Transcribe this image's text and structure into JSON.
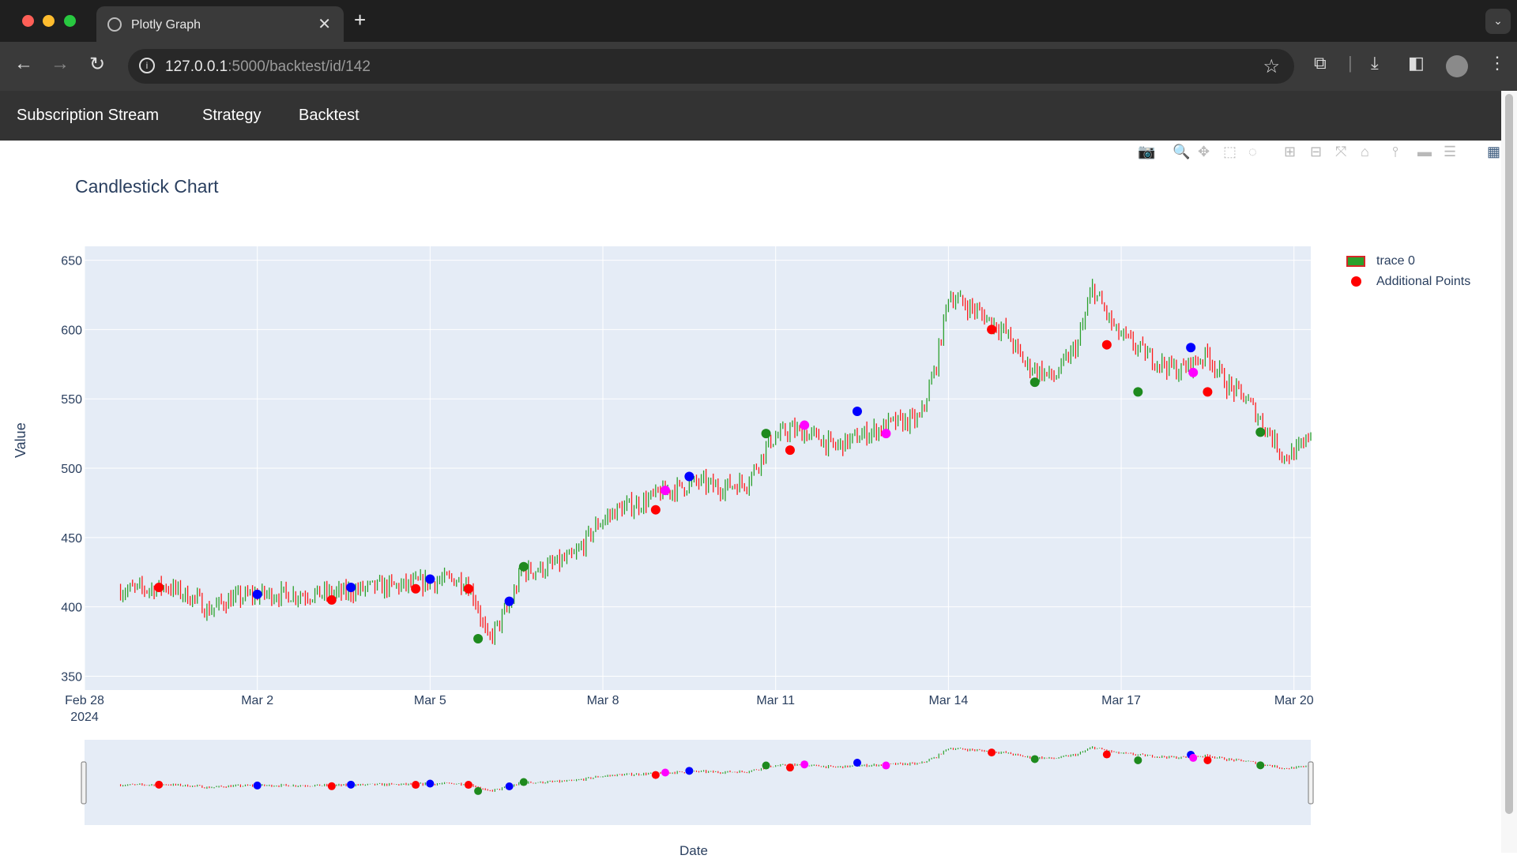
{
  "browser": {
    "tab_title": "Plotly Graph",
    "url_host": "127.0.0.1",
    "url_path": ":5000/backtest/id/142"
  },
  "app_nav": {
    "items": [
      "Subscription Stream",
      "Strategy",
      "Backtest"
    ]
  },
  "colors": {
    "increasing": "#2ca02c",
    "decreasing": "#ff1a1a",
    "plot_bg": "#e5ecf6",
    "blue_marker": "#0000ff",
    "green_marker": "#1e8a1e",
    "red_marker": "#ff0000",
    "magenta_marker": "#ff00ff"
  },
  "chart_data": {
    "type": "candlestick",
    "title": "Candlestick Chart",
    "ylabel": "Value",
    "xlabel": "Date",
    "ylim": [
      340,
      660
    ],
    "xlim": [
      "2024-02-28",
      "2024-03-20T07:00"
    ],
    "x_ticks": [
      {
        "date": "2024-02-28",
        "label": "Feb 28",
        "sub": "2024"
      },
      {
        "date": "2024-03-02",
        "label": "Mar 2",
        "sub": ""
      },
      {
        "date": "2024-03-05",
        "label": "Mar 5",
        "sub": ""
      },
      {
        "date": "2024-03-08",
        "label": "Mar 8",
        "sub": ""
      },
      {
        "date": "2024-03-11",
        "label": "Mar 11",
        "sub": ""
      },
      {
        "date": "2024-03-14",
        "label": "Mar 14",
        "sub": ""
      },
      {
        "date": "2024-03-17",
        "label": "Mar 17",
        "sub": ""
      },
      {
        "date": "2024-03-20",
        "label": "Mar 20",
        "sub": ""
      }
    ],
    "y_ticks": [
      350,
      400,
      450,
      500,
      550,
      600,
      650
    ],
    "grid": true,
    "legend_position": "top-right",
    "legend": [
      "trace 0",
      "Additional Points"
    ],
    "rangeslider": true,
    "price_path": [
      [
        "2024-02-28T15:00",
        412
      ],
      [
        "2024-02-29T03:00",
        413
      ],
      [
        "2024-02-29T10:00",
        415
      ],
      [
        "2024-03-01T00:00",
        404
      ],
      [
        "2024-03-01T03:00",
        397
      ],
      [
        "2024-03-01T12:00",
        405
      ],
      [
        "2024-03-02T00:00",
        409
      ],
      [
        "2024-03-02T12:00",
        409
      ],
      [
        "2024-03-03T00:00",
        409
      ],
      [
        "2024-03-03T12:00",
        410
      ],
      [
        "2024-03-04T00:00",
        414
      ],
      [
        "2024-03-04T12:00",
        415
      ],
      [
        "2024-03-05T00:00",
        418
      ],
      [
        "2024-03-05T10:00",
        420
      ],
      [
        "2024-03-05T15:00",
        418
      ],
      [
        "2024-03-05T19:00",
        405
      ],
      [
        "2024-03-06T00:00",
        375
      ],
      [
        "2024-03-06T09:00",
        400
      ],
      [
        "2024-03-06T14:00",
        425
      ],
      [
        "2024-03-07T00:00",
        428
      ],
      [
        "2024-03-07T12:00",
        436
      ],
      [
        "2024-03-07T22:00",
        460
      ],
      [
        "2024-03-08T06:00",
        470
      ],
      [
        "2024-03-08T16:00",
        475
      ],
      [
        "2024-03-09T00:00",
        482
      ],
      [
        "2024-03-09T16:00",
        490
      ],
      [
        "2024-03-10T00:00",
        486
      ],
      [
        "2024-03-10T12:00",
        490
      ],
      [
        "2024-03-10T22:00",
        520
      ],
      [
        "2024-03-11T06:00",
        528
      ],
      [
        "2024-03-11T18:00",
        522
      ],
      [
        "2024-03-12T00:00",
        515
      ],
      [
        "2024-03-12T14:00",
        525
      ],
      [
        "2024-03-13T00:00",
        532
      ],
      [
        "2024-03-13T12:00",
        535
      ],
      [
        "2024-03-13T19:00",
        575
      ],
      [
        "2024-03-14T00:00",
        625
      ],
      [
        "2024-03-14T12:00",
        613
      ],
      [
        "2024-03-15T00:00",
        598
      ],
      [
        "2024-03-15T08:00",
        575
      ],
      [
        "2024-03-15T20:00",
        565
      ],
      [
        "2024-03-16T06:00",
        590
      ],
      [
        "2024-03-16T12:00",
        630
      ],
      [
        "2024-03-16T22:00",
        598
      ],
      [
        "2024-03-17T12:00",
        580
      ],
      [
        "2024-03-18T00:00",
        570
      ],
      [
        "2024-03-18T12:00",
        582
      ],
      [
        "2024-03-18T20:00",
        560
      ],
      [
        "2024-03-19T04:00",
        550
      ],
      [
        "2024-03-19T12:00",
        530
      ],
      [
        "2024-03-19T20:00",
        508
      ],
      [
        "2024-03-20T04:00",
        515
      ],
      [
        "2024-03-20T07:00",
        528
      ]
    ],
    "additional_points": [
      {
        "x": "2024-02-29T07:00",
        "y": 414,
        "color": "red"
      },
      {
        "x": "2024-03-02T00:00",
        "y": 409,
        "color": "blue"
      },
      {
        "x": "2024-03-03T07:00",
        "y": 405,
        "color": "red"
      },
      {
        "x": "2024-03-03T15:00",
        "y": 414,
        "color": "blue"
      },
      {
        "x": "2024-03-04T18:00",
        "y": 413,
        "color": "red"
      },
      {
        "x": "2024-03-05T00:00",
        "y": 420,
        "color": "blue"
      },
      {
        "x": "2024-03-05T16:00",
        "y": 413,
        "color": "red"
      },
      {
        "x": "2024-03-05T20:00",
        "y": 377,
        "color": "green"
      },
      {
        "x": "2024-03-06T09:00",
        "y": 404,
        "color": "blue"
      },
      {
        "x": "2024-03-06T15:00",
        "y": 429,
        "color": "green"
      },
      {
        "x": "2024-03-08T22:00",
        "y": 470,
        "color": "red"
      },
      {
        "x": "2024-03-09T02:00",
        "y": 484,
        "color": "magenta"
      },
      {
        "x": "2024-03-09T12:00",
        "y": 494,
        "color": "blue"
      },
      {
        "x": "2024-03-10T20:00",
        "y": 525,
        "color": "green"
      },
      {
        "x": "2024-03-11T06:00",
        "y": 513,
        "color": "red"
      },
      {
        "x": "2024-03-11T12:00",
        "y": 531,
        "color": "magenta"
      },
      {
        "x": "2024-03-12T10:00",
        "y": 541,
        "color": "blue"
      },
      {
        "x": "2024-03-12T22:00",
        "y": 525,
        "color": "magenta"
      },
      {
        "x": "2024-03-14T18:00",
        "y": 600,
        "color": "red"
      },
      {
        "x": "2024-03-15T12:00",
        "y": 562,
        "color": "green"
      },
      {
        "x": "2024-03-16T18:00",
        "y": 589,
        "color": "red"
      },
      {
        "x": "2024-03-17T07:00",
        "y": 555,
        "color": "green"
      },
      {
        "x": "2024-03-18T05:00",
        "y": 587,
        "color": "blue"
      },
      {
        "x": "2024-03-18T06:00",
        "y": 569,
        "color": "magenta"
      },
      {
        "x": "2024-03-18T12:00",
        "y": 555,
        "color": "red"
      },
      {
        "x": "2024-03-19T10:00",
        "y": 526,
        "color": "green"
      }
    ]
  }
}
